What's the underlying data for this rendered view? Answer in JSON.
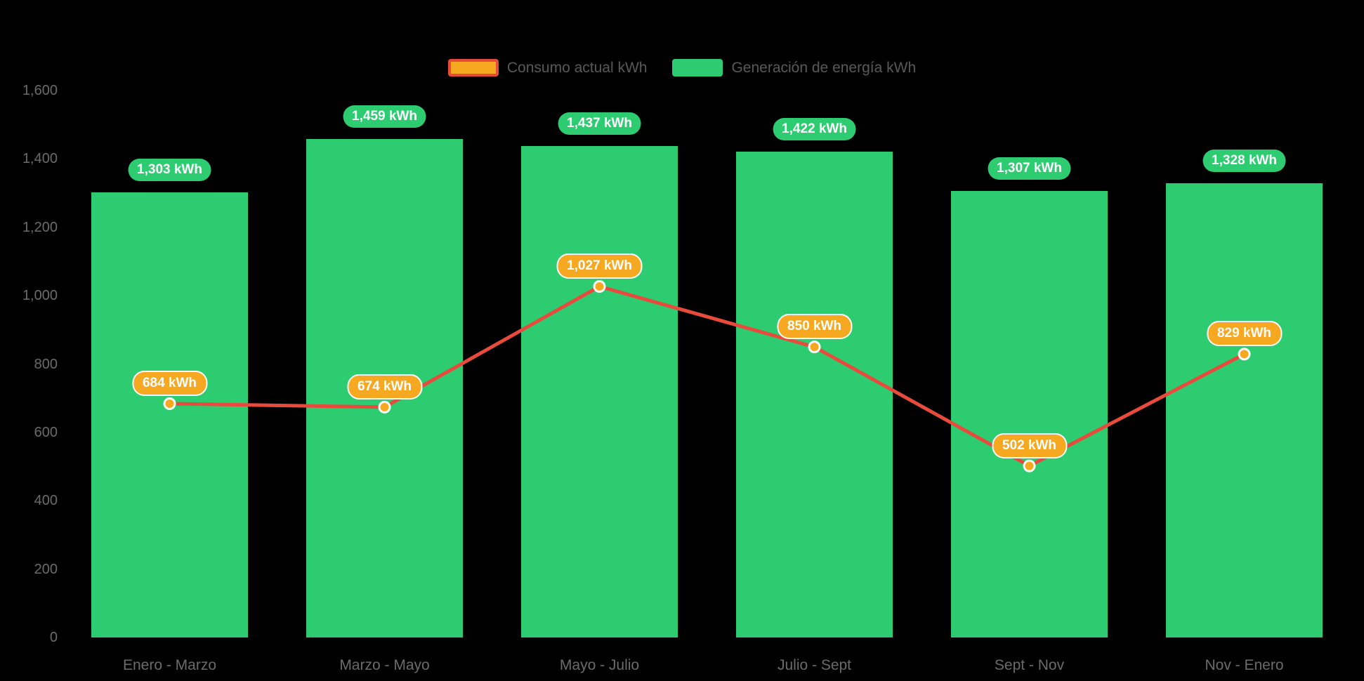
{
  "chart_data": {
    "type": "bar",
    "title": "",
    "categories": [
      "Enero - Marzo",
      "Marzo - Mayo",
      "Mayo - Julio",
      "Julio - Sept",
      "Sept - Nov",
      "Nov - Enero"
    ],
    "series": [
      {
        "name": "Consumo actual kWh",
        "type": "line",
        "values": [
          684,
          674,
          1027,
          850,
          502,
          829
        ],
        "labels": [
          "684 kWh",
          "674 kWh",
          "1,027 kWh",
          "850 kWh",
          "502 kWh",
          "829 kWh"
        ],
        "line_color": "#e84a3c",
        "marker_color": "#f6a821",
        "label_bg": "#f6a821",
        "label_text_color": "#ffffff"
      },
      {
        "name": "Generación de energía kWh",
        "type": "bar",
        "values": [
          1303,
          1459,
          1437,
          1422,
          1307,
          1328
        ],
        "labels": [
          "1,303 kWh",
          "1,459 kWh",
          "1,437 kWh",
          "1,422 kWh",
          "1,307 kWh",
          "1,328 kWh"
        ],
        "bar_color": "#2ecc71",
        "label_bg": "#2ecc71",
        "label_text_color": "#ffffff"
      }
    ],
    "y_axis": {
      "min": 0,
      "max": 1600,
      "step": 200,
      "tick_labels": [
        "0",
        "200",
        "400",
        "600",
        "800",
        "1,000",
        "1,200",
        "1,400",
        "1,600"
      ],
      "text_color": "#6b6b6b"
    },
    "x_axis": {
      "text_color": "#6b6b6b"
    },
    "legend_position": "top",
    "legend_text_color": "#595959",
    "grid": false,
    "background_color": "#000000"
  }
}
